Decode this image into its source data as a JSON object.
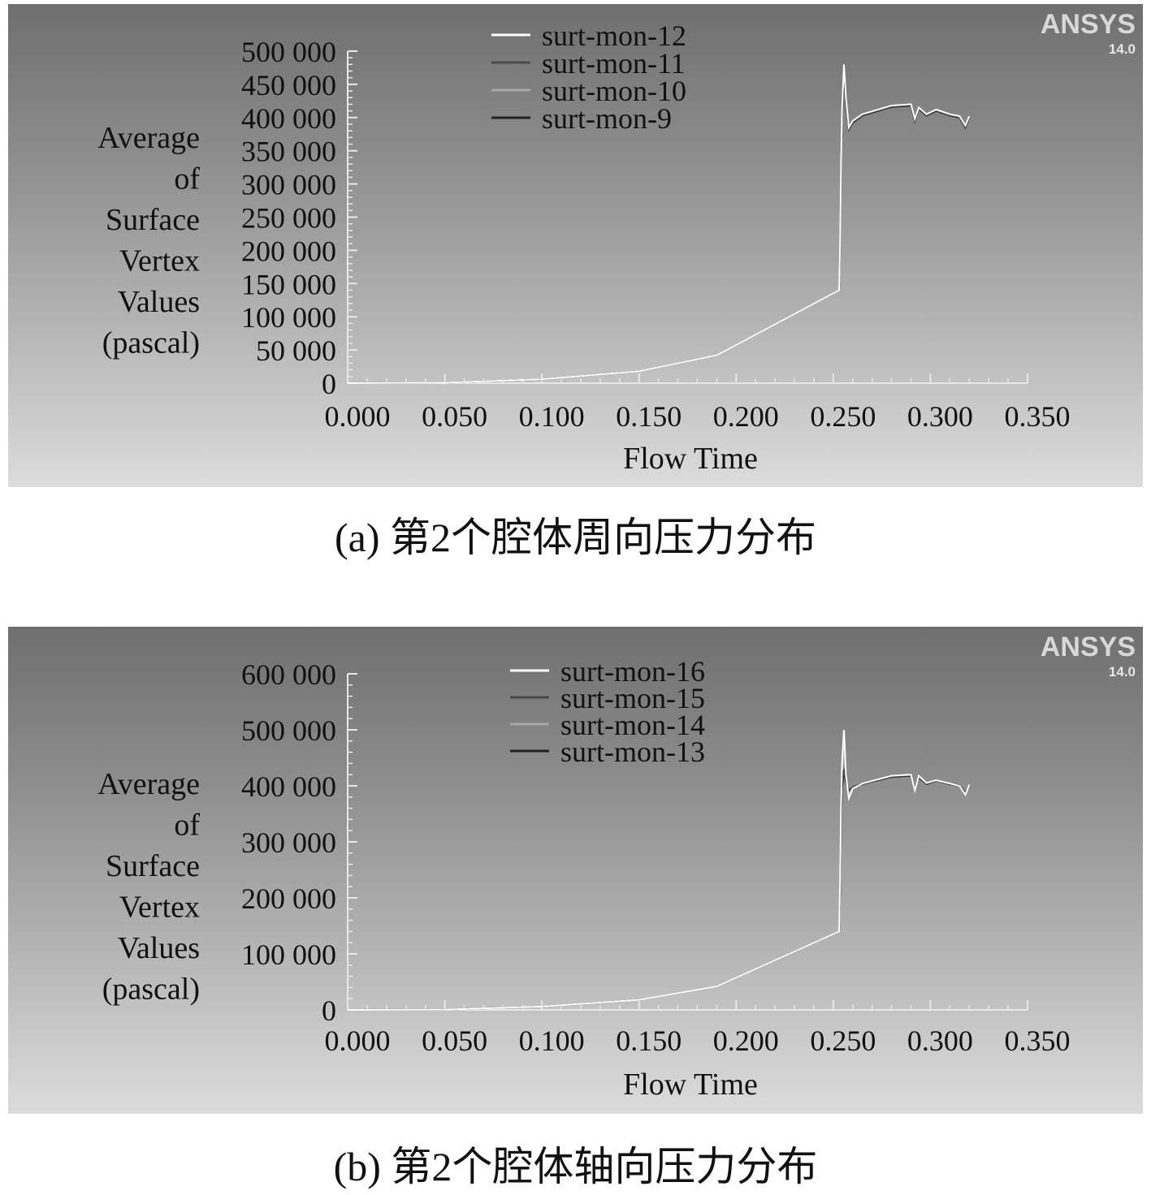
{
  "captions": {
    "a": "(a) 第2个腔体周向压力分布",
    "b": "(b) 第2个腔体轴向压力分布"
  },
  "branding": {
    "logo_text": "ANSYS",
    "version": "14.0"
  },
  "colors": {
    "background_top": "#6f6f6f",
    "background_bottom": "#dcdcdc",
    "series": [
      "#ffffff",
      "#4a4a4a",
      "#a8a8a8",
      "#222222"
    ]
  },
  "chart_data": [
    {
      "type": "line",
      "title": "",
      "xlabel": "Flow Time",
      "ylabel_lines": [
        "Average",
        "of",
        "Surface",
        "Vertex",
        "Values",
        "(pascal)"
      ],
      "xlim": [
        0,
        0.35
      ],
      "ylim": [
        0,
        500000
      ],
      "x_ticks": [
        "0.000",
        "0.050",
        "0.100",
        "0.150",
        "0.200",
        "0.250",
        "0.300",
        "0.350"
      ],
      "y_ticks": [
        "0",
        "50 000",
        "100 000",
        "150 000",
        "200 000",
        "250 000",
        "300 000",
        "350 000",
        "400 000",
        "450 000",
        "500 000"
      ],
      "legend_position": "top-center",
      "series": [
        {
          "name": "surt-mon-12",
          "points": [
            [
              0,
              0
            ],
            [
              0.05,
              600
            ],
            [
              0.1,
              6000
            ],
            [
              0.15,
              18000
            ],
            [
              0.19,
              42000
            ],
            [
              0.253,
              140000
            ],
            [
              0.2535,
              210000
            ],
            [
              0.254,
              330000
            ],
            [
              0.2545,
              410000
            ],
            [
              0.2555,
              480000
            ],
            [
              0.2565,
              430000
            ],
            [
              0.258,
              385000
            ],
            [
              0.26,
              395000
            ],
            [
              0.265,
              405000
            ],
            [
              0.28,
              418000
            ],
            [
              0.29,
              420000
            ],
            [
              0.292,
              398000
            ],
            [
              0.294,
              415000
            ],
            [
              0.298,
              405000
            ],
            [
              0.303,
              412000
            ],
            [
              0.31,
              405000
            ],
            [
              0.315,
              402000
            ],
            [
              0.318,
              388000
            ],
            [
              0.32,
              402000
            ]
          ]
        },
        {
          "name": "surt-mon-11",
          "points": [
            [
              0,
              0
            ],
            [
              0.05,
              600
            ],
            [
              0.1,
              6000
            ],
            [
              0.15,
              18000
            ],
            [
              0.19,
              42000
            ],
            [
              0.253,
              140000
            ],
            [
              0.2535,
              205000
            ],
            [
              0.254,
              325000
            ],
            [
              0.2545,
              405000
            ],
            [
              0.2555,
              470000
            ],
            [
              0.2565,
              425000
            ],
            [
              0.258,
              383000
            ],
            [
              0.26,
              393000
            ],
            [
              0.265,
              404000
            ],
            [
              0.28,
              417000
            ],
            [
              0.29,
              419000
            ],
            [
              0.292,
              396000
            ],
            [
              0.294,
              414000
            ],
            [
              0.298,
              404000
            ],
            [
              0.303,
              411000
            ],
            [
              0.31,
              404000
            ],
            [
              0.315,
              401000
            ],
            [
              0.318,
              386000
            ],
            [
              0.32,
              401000
            ]
          ]
        },
        {
          "name": "surt-mon-10",
          "points": [
            [
              0,
              0
            ],
            [
              0.05,
              600
            ],
            [
              0.1,
              6000
            ],
            [
              0.15,
              18000
            ],
            [
              0.19,
              42000
            ],
            [
              0.253,
              140000
            ],
            [
              0.2535,
              208000
            ],
            [
              0.254,
              328000
            ],
            [
              0.2545,
              408000
            ],
            [
              0.2555,
              475000
            ],
            [
              0.2565,
              428000
            ],
            [
              0.258,
              384000
            ],
            [
              0.26,
              394000
            ],
            [
              0.265,
              405000
            ],
            [
              0.28,
              418000
            ],
            [
              0.29,
              420000
            ],
            [
              0.292,
              397000
            ],
            [
              0.294,
              415000
            ],
            [
              0.298,
              405000
            ],
            [
              0.303,
              412000
            ],
            [
              0.31,
              405000
            ],
            [
              0.315,
              402000
            ],
            [
              0.318,
              387000
            ],
            [
              0.32,
              402000
            ]
          ]
        },
        {
          "name": "surt-mon-9",
          "points": [
            [
              0,
              0
            ],
            [
              0.05,
              600
            ],
            [
              0.1,
              6000
            ],
            [
              0.15,
              18000
            ],
            [
              0.19,
              42000
            ],
            [
              0.253,
              140000
            ],
            [
              0.2535,
              200000
            ],
            [
              0.254,
              320000
            ],
            [
              0.2545,
              400000
            ],
            [
              0.2555,
              465000
            ],
            [
              0.2565,
              420000
            ],
            [
              0.258,
              382000
            ],
            [
              0.26,
              392000
            ],
            [
              0.265,
              403000
            ],
            [
              0.28,
              416000
            ],
            [
              0.29,
              418000
            ],
            [
              0.292,
              395000
            ],
            [
              0.294,
              413000
            ],
            [
              0.298,
              403000
            ],
            [
              0.303,
              410000
            ],
            [
              0.31,
              403000
            ],
            [
              0.315,
              400000
            ],
            [
              0.318,
              385000
            ],
            [
              0.32,
              400000
            ]
          ]
        }
      ]
    },
    {
      "type": "line",
      "title": "",
      "xlabel": "Flow Time",
      "ylabel_lines": [
        "Average",
        "of",
        "Surface",
        "Vertex",
        "Values",
        "(pascal)"
      ],
      "xlim": [
        0,
        0.35
      ],
      "ylim": [
        0,
        600000
      ],
      "x_ticks": [
        "0.000",
        "0.050",
        "0.100",
        "0.150",
        "0.200",
        "0.250",
        "0.300",
        "0.350"
      ],
      "y_ticks": [
        "0",
        "100 000",
        "200 000",
        "300 000",
        "400 000",
        "500 000",
        "600 000"
      ],
      "legend_position": "top-center",
      "series": [
        {
          "name": "surt-mon-16",
          "points": [
            [
              0,
              0
            ],
            [
              0.05,
              600
            ],
            [
              0.1,
              6000
            ],
            [
              0.15,
              18000
            ],
            [
              0.19,
              42000
            ],
            [
              0.253,
              140000
            ],
            [
              0.2535,
              230000
            ],
            [
              0.254,
              360000
            ],
            [
              0.2545,
              440000
            ],
            [
              0.2555,
              500000
            ],
            [
              0.2565,
              420000
            ],
            [
              0.258,
              378000
            ],
            [
              0.26,
              395000
            ],
            [
              0.265,
              404000
            ],
            [
              0.28,
              418000
            ],
            [
              0.29,
              420000
            ],
            [
              0.292,
              392000
            ],
            [
              0.294,
              418000
            ],
            [
              0.298,
              405000
            ],
            [
              0.303,
              410000
            ],
            [
              0.31,
              404000
            ],
            [
              0.315,
              400000
            ],
            [
              0.318,
              384000
            ],
            [
              0.32,
              402000
            ]
          ]
        },
        {
          "name": "surt-mon-15",
          "points": [
            [
              0,
              0
            ],
            [
              0.05,
              600
            ],
            [
              0.1,
              6000
            ],
            [
              0.15,
              18000
            ],
            [
              0.19,
              42000
            ],
            [
              0.253,
              140000
            ],
            [
              0.2535,
              210000
            ],
            [
              0.254,
              330000
            ],
            [
              0.2545,
              400000
            ],
            [
              0.2555,
              430000
            ],
            [
              0.2565,
              410000
            ],
            [
              0.258,
              392000
            ],
            [
              0.26,
              398000
            ],
            [
              0.265,
              404000
            ],
            [
              0.28,
              417000
            ],
            [
              0.29,
              419000
            ],
            [
              0.292,
              396000
            ],
            [
              0.294,
              416000
            ],
            [
              0.298,
              404000
            ],
            [
              0.303,
              410000
            ],
            [
              0.31,
              404000
            ],
            [
              0.315,
              401000
            ],
            [
              0.318,
              388000
            ],
            [
              0.32,
              401000
            ]
          ]
        },
        {
          "name": "surt-mon-14",
          "points": [
            [
              0,
              0
            ],
            [
              0.05,
              600
            ],
            [
              0.1,
              6000
            ],
            [
              0.15,
              18000
            ],
            [
              0.19,
              42000
            ],
            [
              0.253,
              140000
            ],
            [
              0.2535,
              220000
            ],
            [
              0.254,
              345000
            ],
            [
              0.2545,
              420000
            ],
            [
              0.2555,
              470000
            ],
            [
              0.2565,
              415000
            ],
            [
              0.258,
              385000
            ],
            [
              0.26,
              396000
            ],
            [
              0.265,
              404000
            ],
            [
              0.28,
              418000
            ],
            [
              0.29,
              420000
            ],
            [
              0.292,
              394000
            ],
            [
              0.294,
              417000
            ],
            [
              0.298,
              405000
            ],
            [
              0.303,
              411000
            ],
            [
              0.31,
              405000
            ],
            [
              0.315,
              401000
            ],
            [
              0.318,
              386000
            ],
            [
              0.32,
              401000
            ]
          ]
        },
        {
          "name": "surt-mon-13",
          "points": [
            [
              0,
              0
            ],
            [
              0.05,
              600
            ],
            [
              0.1,
              6000
            ],
            [
              0.15,
              18000
            ],
            [
              0.19,
              42000
            ],
            [
              0.253,
              140000
            ],
            [
              0.2535,
              205000
            ],
            [
              0.254,
              325000
            ],
            [
              0.2545,
              395000
            ],
            [
              0.2555,
              425000
            ],
            [
              0.2565,
              408000
            ],
            [
              0.258,
              390000
            ],
            [
              0.26,
              397000
            ],
            [
              0.265,
              403000
            ],
            [
              0.28,
              416000
            ],
            [
              0.29,
              418000
            ],
            [
              0.292,
              395000
            ],
            [
              0.294,
              415000
            ],
            [
              0.298,
              403000
            ],
            [
              0.303,
              409000
            ],
            [
              0.31,
              403000
            ],
            [
              0.315,
              400000
            ],
            [
              0.318,
              387000
            ],
            [
              0.32,
              400000
            ]
          ]
        }
      ]
    }
  ]
}
